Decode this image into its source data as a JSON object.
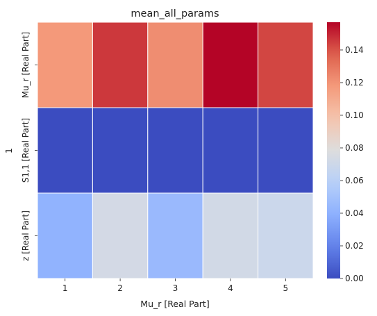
{
  "chart_data": {
    "type": "heatmap",
    "title": "mean_all_params",
    "xlabel": "Mu_r [Real Part]",
    "ylabel": "1",
    "x_categories": [
      "1",
      "2",
      "3",
      "4",
      "5"
    ],
    "y_categories": [
      "Mu_r [Real Part]",
      "S1,1 [Real Part]",
      "z [Real Part]"
    ],
    "values": [
      [
        0.118,
        0.146,
        0.122,
        0.157,
        0.143
      ],
      [
        0.0,
        0.0,
        0.0,
        0.0,
        0.0
      ],
      [
        0.041,
        0.073,
        0.045,
        0.072,
        0.069
      ]
    ],
    "colorbar": {
      "colormap": "coolwarm",
      "min": 0.0,
      "max": 0.157,
      "ticks": [
        "0.00",
        "0.02",
        "0.04",
        "0.06",
        "0.08",
        "0.10",
        "0.12",
        "0.14"
      ]
    }
  }
}
